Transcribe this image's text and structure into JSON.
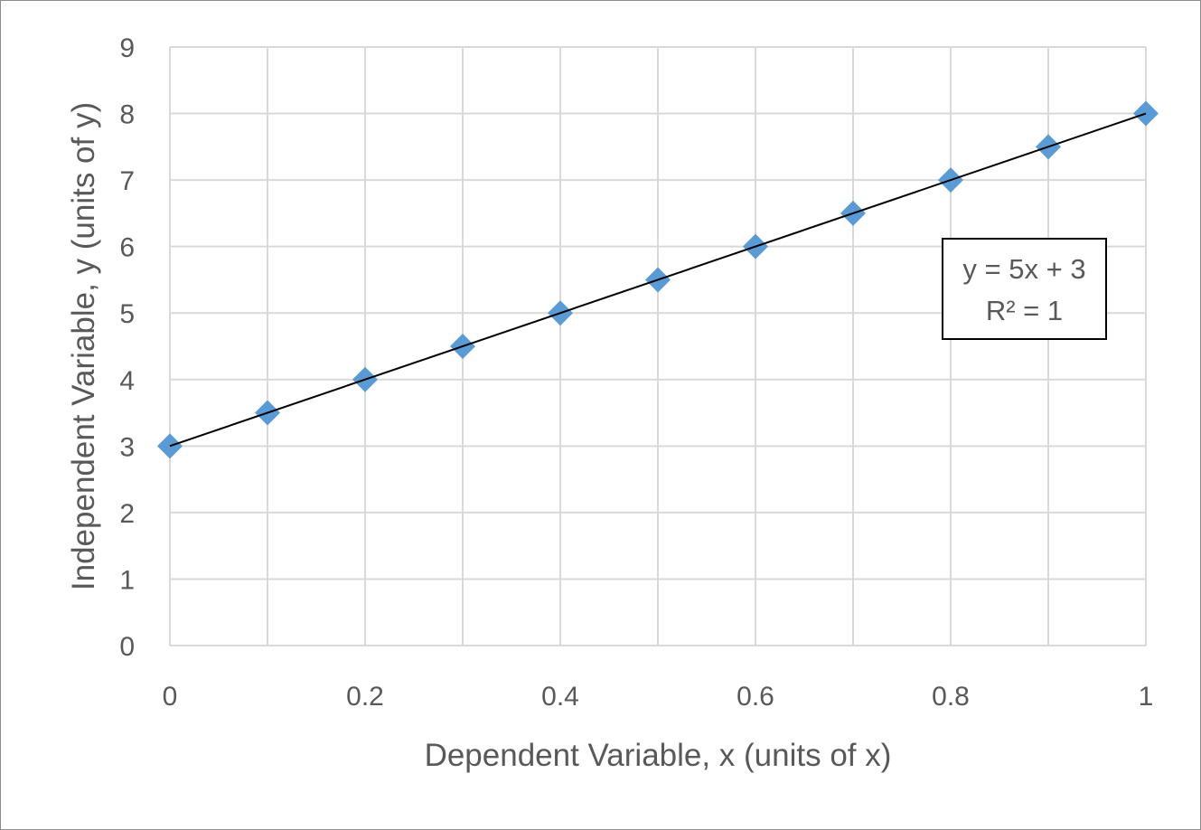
{
  "chart_data": {
    "type": "scatter",
    "title": "",
    "xlabel": "Dependent Variable, x (units of x)",
    "ylabel": "Independent Variable, y (units of y)",
    "xlim": [
      0,
      1
    ],
    "ylim": [
      0,
      9
    ],
    "xticks": [
      "0",
      "0.2",
      "0.4",
      "0.6",
      "0.8",
      "1"
    ],
    "xgrid_step": 0.1,
    "yticks": [
      "0",
      "1",
      "2",
      "3",
      "4",
      "5",
      "6",
      "7",
      "8",
      "9"
    ],
    "grid": true,
    "legend": "none",
    "marker": "diamond",
    "marker_color": "#5B9BD5",
    "trendline": {
      "type": "linear",
      "slope": 5,
      "intercept": 3,
      "color": "#000000",
      "equation": "y = 5x + 3",
      "r2_label": "R² = 1"
    },
    "series": [
      {
        "x": [
          0,
          0.1,
          0.2,
          0.3,
          0.4,
          0.5,
          0.6,
          0.7,
          0.8,
          0.9,
          1
        ],
        "y": [
          3,
          3.5,
          4,
          4.5,
          5,
          5.5,
          6,
          6.5,
          7,
          7.5,
          8
        ]
      }
    ]
  }
}
